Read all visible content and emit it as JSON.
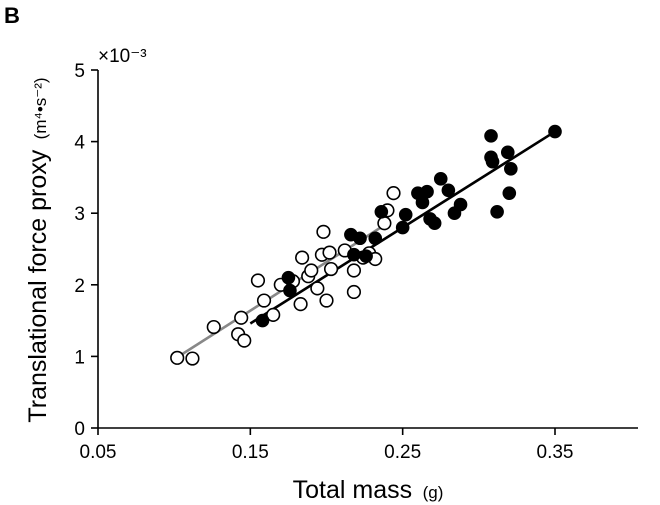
{
  "panel_label": "B",
  "chart_data": {
    "type": "scatter",
    "title": "",
    "xlabel": "Total mass",
    "xunit": "(g)",
    "ylabel": "Translational force proxy",
    "yunit": "(m⁴•s⁻²)",
    "y_multiplier": "×10⁻³",
    "xlim": [
      0.05,
      0.4
    ],
    "ylim": [
      0,
      5
    ],
    "xticks": [
      0.05,
      0.15,
      0.25,
      0.35
    ],
    "xtick_labels": [
      "0.05",
      "0.15",
      "0.25",
      "0.35"
    ],
    "yticks": [
      0,
      1,
      2,
      3,
      4,
      5
    ],
    "ytick_labels": [
      "0",
      "1",
      "2",
      "3",
      "4",
      "5"
    ],
    "grid": false,
    "series": [
      {
        "name": "open",
        "marker": "open-circle",
        "color": "#000000",
        "points": [
          [
            0.102,
            0.98
          ],
          [
            0.112,
            0.97
          ],
          [
            0.126,
            1.41
          ],
          [
            0.142,
            1.31
          ],
          [
            0.144,
            1.54
          ],
          [
            0.146,
            1.22
          ],
          [
            0.155,
            2.06
          ],
          [
            0.159,
            1.78
          ],
          [
            0.165,
            1.58
          ],
          [
            0.17,
            2.0
          ],
          [
            0.178,
            2.05
          ],
          [
            0.183,
            1.73
          ],
          [
            0.184,
            2.38
          ],
          [
            0.188,
            2.12
          ],
          [
            0.19,
            2.2
          ],
          [
            0.194,
            1.95
          ],
          [
            0.197,
            2.42
          ],
          [
            0.198,
            2.74
          ],
          [
            0.2,
            1.78
          ],
          [
            0.202,
            2.45
          ],
          [
            0.203,
            2.22
          ],
          [
            0.212,
            2.48
          ],
          [
            0.218,
            2.2
          ],
          [
            0.218,
            1.9
          ],
          [
            0.224,
            2.38
          ],
          [
            0.228,
            2.44
          ],
          [
            0.232,
            2.36
          ],
          [
            0.238,
            2.86
          ],
          [
            0.24,
            3.04
          ],
          [
            0.244,
            3.28
          ]
        ]
      },
      {
        "name": "filled",
        "marker": "filled-circle",
        "color": "#000000",
        "points": [
          [
            0.158,
            1.5
          ],
          [
            0.175,
            2.1
          ],
          [
            0.176,
            1.92
          ],
          [
            0.216,
            2.7
          ],
          [
            0.218,
            2.42
          ],
          [
            0.222,
            2.65
          ],
          [
            0.226,
            2.4
          ],
          [
            0.232,
            2.65
          ],
          [
            0.236,
            3.02
          ],
          [
            0.25,
            2.8
          ],
          [
            0.252,
            2.98
          ],
          [
            0.26,
            3.28
          ],
          [
            0.263,
            3.15
          ],
          [
            0.266,
            3.3
          ],
          [
            0.268,
            2.92
          ],
          [
            0.271,
            2.86
          ],
          [
            0.275,
            3.48
          ],
          [
            0.28,
            3.32
          ],
          [
            0.284,
            3.0
          ],
          [
            0.288,
            3.12
          ],
          [
            0.308,
            4.08
          ],
          [
            0.308,
            3.78
          ],
          [
            0.309,
            3.72
          ],
          [
            0.312,
            3.02
          ],
          [
            0.319,
            3.85
          ],
          [
            0.32,
            3.28
          ],
          [
            0.321,
            3.62
          ],
          [
            0.35,
            4.14
          ]
        ]
      }
    ],
    "fit_lines": [
      {
        "name": "fit-open",
        "color": "#888888",
        "x": [
          0.1,
          0.24
        ],
        "y": [
          0.96,
          2.86
        ]
      },
      {
        "name": "fit-filled",
        "color": "#000000",
        "x": [
          0.15,
          0.35
        ],
        "y": [
          1.46,
          4.14
        ]
      }
    ]
  }
}
